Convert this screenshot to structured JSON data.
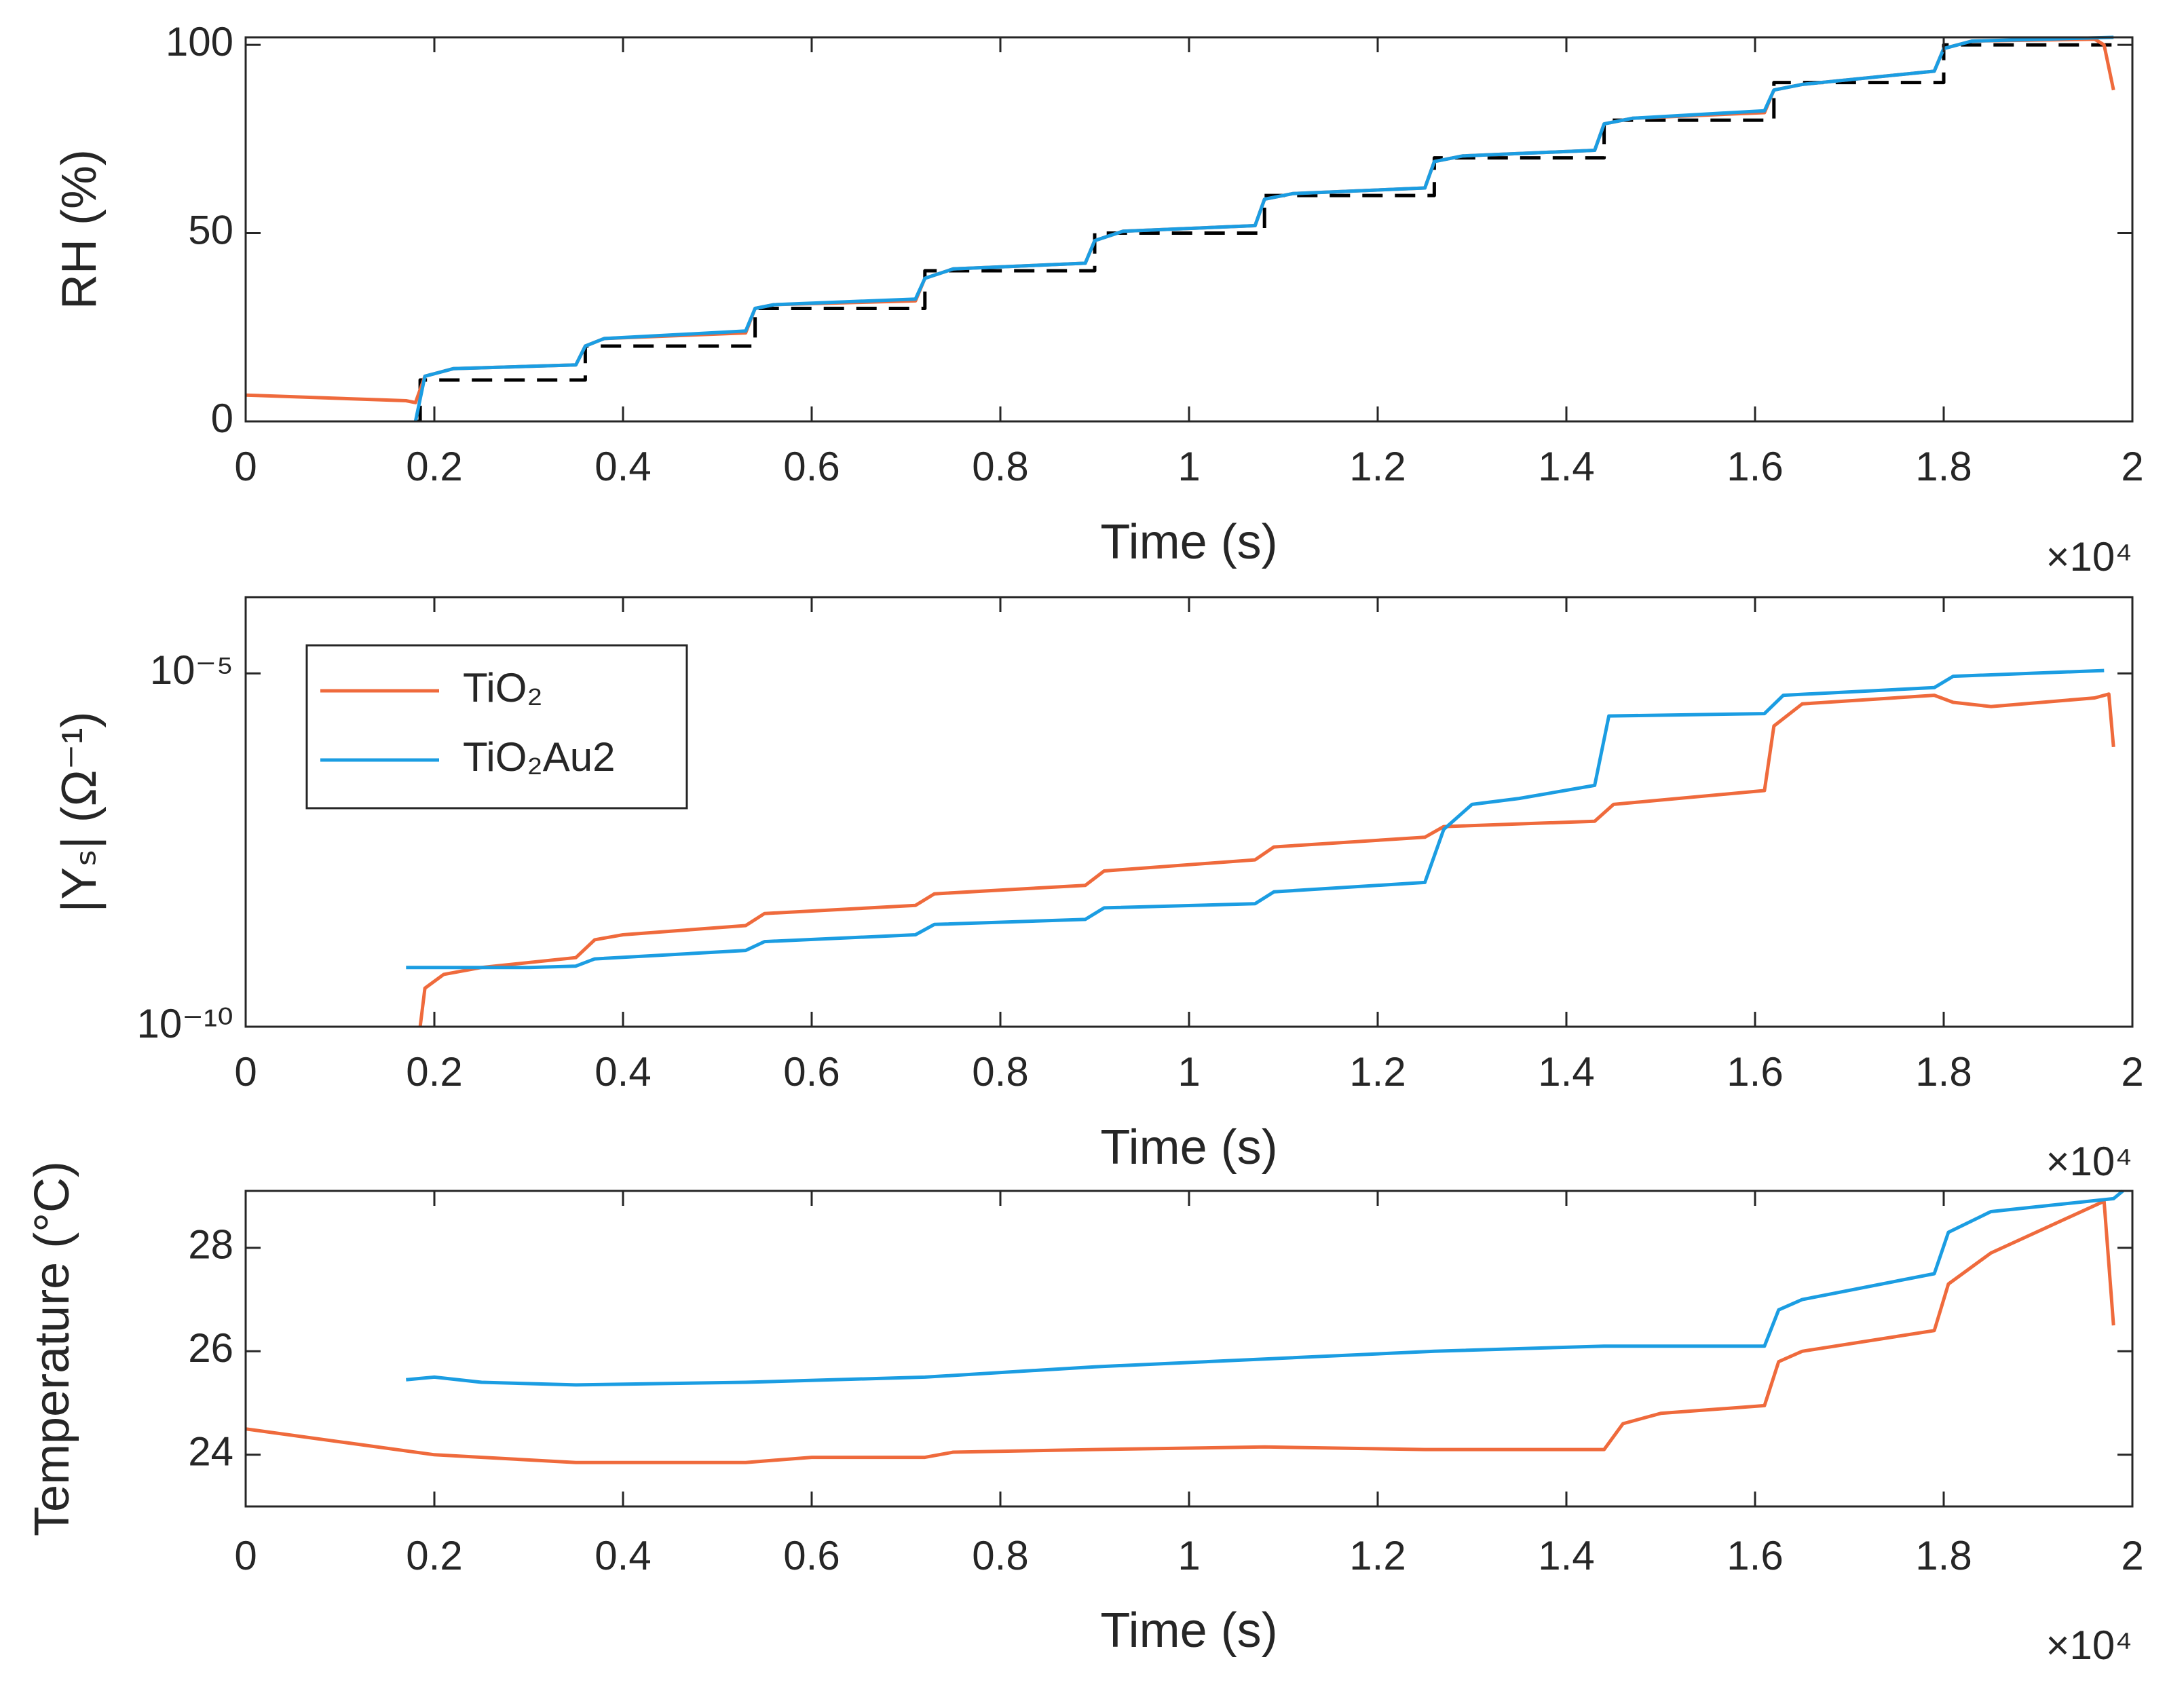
{
  "chart_data": [
    {
      "type": "line",
      "xlabel": "Time (s)",
      "ylabel": "RH (%)",
      "x_exponent_label": "×10⁴",
      "xlim": [
        0,
        2
      ],
      "xticks": [
        0,
        0.2,
        0.4,
        0.6,
        0.8,
        1,
        1.2,
        1.4,
        1.6,
        1.8,
        2
      ],
      "ylim": [
        0,
        102
      ],
      "yticks": [
        0,
        50,
        100
      ],
      "series": [
        {
          "color": "#000000",
          "dashed": true,
          "x": [
            0.18,
            0.185,
            0.185,
            0.36,
            0.36,
            0.54,
            0.54,
            0.72,
            0.72,
            0.9,
            0.9,
            1.08,
            1.08,
            1.26,
            1.26,
            1.44,
            1.44,
            1.62,
            1.62,
            1.8,
            1.8,
            1.98
          ],
          "values": [
            0,
            0,
            11,
            11,
            20,
            20,
            30,
            30,
            40,
            40,
            50,
            50,
            60,
            60,
            70,
            70,
            80,
            80,
            90,
            90,
            100,
            100
          ]
        },
        {
          "color": "#ef6a3c",
          "x": [
            0,
            0.17,
            0.18,
            0.19,
            0.22,
            0.35,
            0.36,
            0.38,
            0.53,
            0.54,
            0.56,
            0.71,
            0.72,
            0.75,
            0.89,
            0.9,
            0.93,
            1.07,
            1.08,
            1.11,
            1.25,
            1.26,
            1.29,
            1.43,
            1.44,
            1.47,
            1.61,
            1.62,
            1.65,
            1.79,
            1.8,
            1.83,
            1.96,
            1.97,
            1.98
          ],
          "values": [
            7,
            5.5,
            5,
            12,
            14,
            15,
            20,
            22,
            23.5,
            30,
            31,
            32,
            38,
            40.5,
            42,
            48,
            50.5,
            52,
            59,
            60.5,
            62,
            69,
            70.5,
            72,
            79,
            80.5,
            82,
            88,
            89.5,
            93,
            99,
            101,
            101.5,
            100,
            88
          ]
        },
        {
          "color": "#1b9de2",
          "x": [
            0.18,
            0.19,
            0.22,
            0.35,
            0.36,
            0.38,
            0.53,
            0.54,
            0.56,
            0.71,
            0.72,
            0.75,
            0.89,
            0.9,
            0.93,
            1.07,
            1.08,
            1.11,
            1.25,
            1.26,
            1.29,
            1.43,
            1.44,
            1.47,
            1.61,
            1.62,
            1.65,
            1.79,
            1.8,
            1.83,
            1.98
          ],
          "values": [
            0,
            12,
            14,
            15,
            20,
            22,
            24,
            30,
            31,
            32.5,
            38,
            40.5,
            42,
            48,
            50.5,
            52,
            59,
            60.5,
            62,
            69,
            70.5,
            72,
            79,
            80.5,
            82.5,
            88,
            89.5,
            93,
            99,
            101,
            102
          ]
        }
      ]
    },
    {
      "type": "line",
      "xlabel": "Time (s)",
      "ylabel": "|Yₛ| (Ω⁻¹)",
      "x_exponent_label": "×10⁴",
      "xlim": [
        0,
        2
      ],
      "xticks": [
        0,
        0.2,
        0.4,
        0.6,
        0.8,
        1,
        1.2,
        1.4,
        1.6,
        1.8,
        2
      ],
      "yscale": "log",
      "ylim": [
        1e-10,
        0.00012
      ],
      "yticks": [
        {
          "value": 1e-10,
          "label": "10⁻¹⁰"
        },
        {
          "value": 1e-05,
          "label": "10⁻⁵"
        }
      ],
      "legend": "upper left",
      "series": [
        {
          "name": "TiO₂",
          "color": "#ef6a3c",
          "x": [
            0.185,
            0.19,
            0.21,
            0.25,
            0.35,
            0.37,
            0.4,
            0.53,
            0.55,
            0.71,
            0.73,
            0.89,
            0.91,
            1.07,
            1.09,
            1.25,
            1.27,
            1.43,
            1.45,
            1.61,
            1.62,
            1.65,
            1.79,
            1.81,
            1.85,
            1.96,
            1.975,
            1.98
          ],
          "values": [
            1e-10,
            3.5e-10,
            5.5e-10,
            6.9e-10,
            9.5e-10,
            1.7e-09,
            2e-09,
            2.7e-09,
            4e-09,
            5.2e-09,
            7.6e-09,
            1e-08,
            1.6e-08,
            2.3e-08,
            3.5e-08,
            4.8e-08,
            6.8e-08,
            8.1e-08,
            1.4e-07,
            2.2e-07,
            1.8e-06,
            3.7e-06,
            4.9e-06,
            3.9e-06,
            3.4e-06,
            4.5e-06,
            5.1e-06,
            9.1e-07
          ]
        },
        {
          "name": "TiO₂Au2",
          "color": "#1b9de2",
          "x": [
            0.17,
            0.3,
            0.35,
            0.37,
            0.53,
            0.55,
            0.71,
            0.73,
            0.89,
            0.91,
            1.07,
            1.09,
            1.25,
            1.27,
            1.3,
            1.35,
            1.43,
            1.445,
            1.61,
            1.63,
            1.79,
            1.81,
            1.97
          ],
          "values": [
            6.9e-10,
            6.9e-10,
            7.2e-10,
            9.1e-10,
            1.2e-09,
            1.6e-09,
            2e-09,
            2.8e-09,
            3.3e-09,
            4.8e-09,
            5.5e-09,
            8.1e-09,
            1.1e-08,
            6.2e-08,
            1.4e-07,
            1.7e-07,
            2.6e-07,
            2.5e-06,
            2.7e-06,
            4.9e-06,
            6.3e-06,
            9.1e-06,
            1.1e-05
          ]
        }
      ]
    },
    {
      "type": "line",
      "xlabel": "Time (s)",
      "ylabel": "Temperature (°C)",
      "x_exponent_label": "×10⁴",
      "xlim": [
        0,
        2
      ],
      "xticks": [
        0,
        0.2,
        0.4,
        0.6,
        0.8,
        1,
        1.2,
        1.4,
        1.6,
        1.8,
        2
      ],
      "ylim": [
        23,
        29.1
      ],
      "yticks": [
        24,
        26,
        28
      ],
      "series": [
        {
          "color": "#ef6a3c",
          "x": [
            0,
            0.2,
            0.35,
            0.53,
            0.6,
            0.72,
            0.75,
            0.9,
            1.08,
            1.25,
            1.44,
            1.46,
            1.5,
            1.61,
            1.625,
            1.65,
            1.79,
            1.805,
            1.85,
            1.97,
            1.98
          ],
          "values": [
            24.5,
            24.0,
            23.85,
            23.85,
            23.95,
            23.95,
            24.05,
            24.1,
            24.15,
            24.1,
            24.1,
            24.6,
            24.8,
            24.95,
            25.8,
            26.0,
            26.4,
            27.3,
            27.9,
            28.9,
            26.5
          ]
        },
        {
          "color": "#1b9de2",
          "x": [
            0.17,
            0.2,
            0.25,
            0.35,
            0.53,
            0.72,
            0.9,
            1.08,
            1.26,
            1.44,
            1.61,
            1.625,
            1.65,
            1.79,
            1.805,
            1.85,
            1.98,
            1.99
          ],
          "values": [
            25.45,
            25.5,
            25.4,
            25.35,
            25.4,
            25.5,
            25.7,
            25.85,
            26.0,
            26.1,
            26.1,
            26.8,
            27.0,
            27.5,
            28.3,
            28.7,
            28.95,
            29.1
          ]
        }
      ]
    }
  ]
}
